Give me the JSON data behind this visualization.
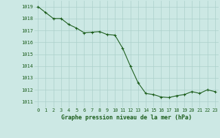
{
  "x": [
    0,
    1,
    2,
    3,
    4,
    5,
    6,
    7,
    8,
    9,
    10,
    11,
    12,
    13,
    14,
    15,
    16,
    17,
    18,
    19,
    20,
    21,
    22,
    23
  ],
  "y": [
    1019.0,
    1018.5,
    1018.0,
    1018.0,
    1017.5,
    1017.2,
    1016.8,
    1016.85,
    1016.9,
    1016.65,
    1016.6,
    1015.5,
    1014.0,
    1012.6,
    1011.7,
    1011.6,
    1011.4,
    1011.35,
    1011.5,
    1011.6,
    1011.85,
    1011.7,
    1012.0,
    1011.85
  ],
  "line_color": "#1a5c1a",
  "marker": "+",
  "markersize": 3,
  "linewidth": 0.8,
  "bg_color": "#cce8e4",
  "grid_color": "#aacfca",
  "xlabel": "Graphe pression niveau de la mer (hPa)",
  "xlabel_color": "#1a5c1a",
  "xlabel_fontsize": 6.0,
  "tick_color": "#1a5c1a",
  "tick_fontsize": 5.0,
  "ylim": [
    1010.5,
    1019.5
  ],
  "xlim": [
    -0.5,
    23.5
  ],
  "yticks": [
    1011,
    1012,
    1013,
    1014,
    1015,
    1016,
    1017,
    1018,
    1019
  ],
  "xticks": [
    0,
    1,
    2,
    3,
    4,
    5,
    6,
    7,
    8,
    9,
    10,
    11,
    12,
    13,
    14,
    15,
    16,
    17,
    18,
    19,
    20,
    21,
    22,
    23
  ]
}
